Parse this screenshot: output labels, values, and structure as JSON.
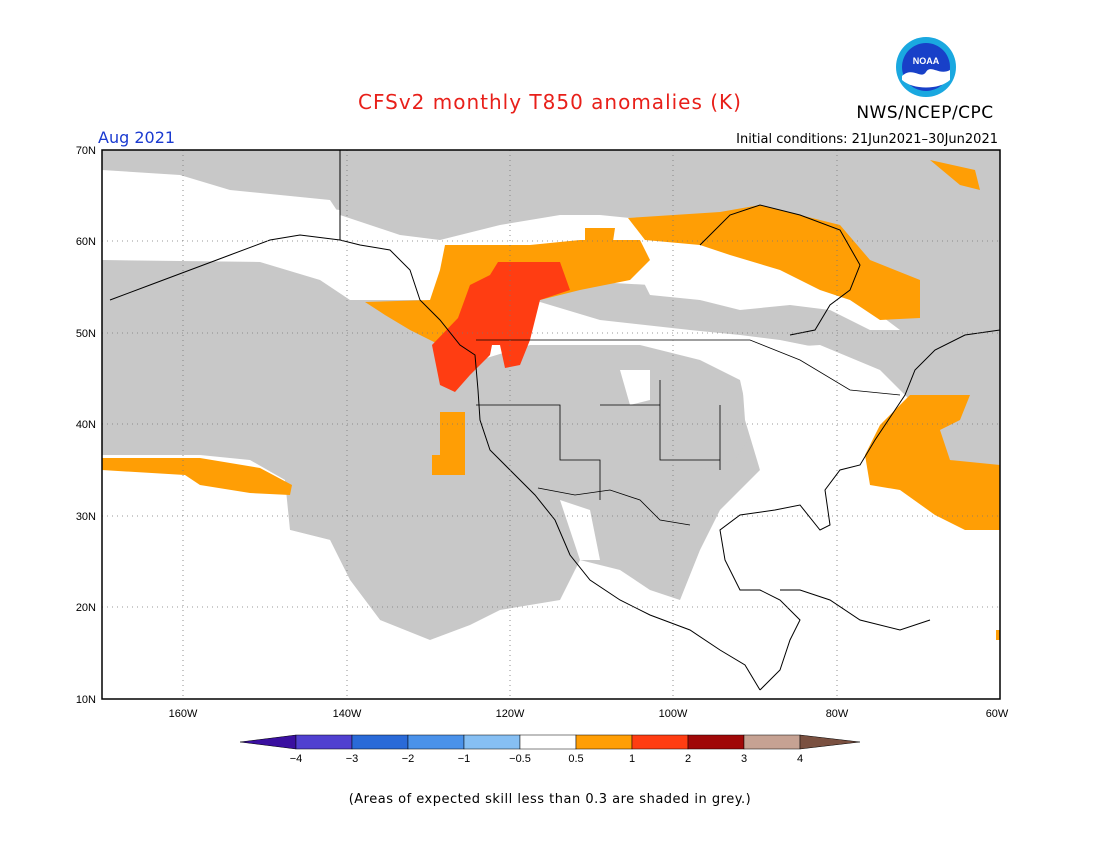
{
  "title": "CFSv2 monthly T850 anomalies (K)",
  "org": {
    "name": "NWS/NCEP/CPC",
    "logo_text": "NOAA",
    "logo_icon": "noaa-logo-icon"
  },
  "valid_month": "Aug 2021",
  "initial_conditions": "Initial conditions: 21Jun2021–30Jun2021",
  "map": {
    "lat_labels": [
      "70N",
      "60N",
      "50N",
      "40N",
      "30N",
      "20N",
      "10N"
    ],
    "lon_labels": [
      "160W",
      "140W",
      "120W",
      "100W",
      "80W",
      "60W"
    ],
    "extent": {
      "lon_min": -170,
      "lon_max": -60,
      "lat_min": 10,
      "lat_max": 70
    },
    "grid": true
  },
  "legend": {
    "ticks": [
      "−4",
      "−3",
      "−2",
      "−1",
      "−0.5",
      "0.5",
      "1",
      "2",
      "3",
      "4"
    ],
    "colors": [
      "#3a0fa0",
      "#5040d0",
      "#2a6ad8",
      "#4a92ea",
      "#86bff3",
      "#ffffff",
      "#ff9e05",
      "#ff3d12",
      "#a00808",
      "#c6a293",
      "#7a5040"
    ]
  },
  "colors": {
    "grey_skill": "#c8c8c8",
    "anom_05_1": "#ff9e05",
    "anom_1_2": "#ff3d12"
  },
  "footnote": "(Areas of expected skill less than 0.3 are shaded in grey.)"
}
